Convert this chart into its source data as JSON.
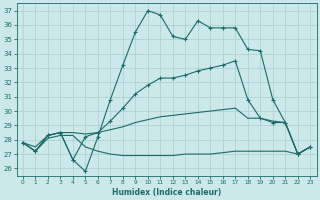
{
  "xlabel": "Humidex (Indice chaleur)",
  "ylabel": "",
  "xlim": [
    -0.5,
    23.5
  ],
  "ylim": [
    25.5,
    37.5
  ],
  "yticks": [
    26,
    27,
    28,
    29,
    30,
    31,
    32,
    33,
    34,
    35,
    36,
    37
  ],
  "xticks": [
    0,
    1,
    2,
    3,
    4,
    5,
    6,
    7,
    8,
    9,
    10,
    11,
    12,
    13,
    14,
    15,
    16,
    17,
    18,
    19,
    20,
    21,
    22,
    23
  ],
  "bg_color": "#cce8e8",
  "line_color": "#1a6b6b",
  "grid_color": "#aacece",
  "line1_marked": {
    "x": [
      0,
      1,
      2,
      3,
      4,
      5,
      6,
      7,
      8,
      9,
      10,
      11,
      12,
      13,
      14,
      15,
      16,
      17,
      18,
      19,
      20,
      21,
      22,
      23
    ],
    "y": [
      27.8,
      27.2,
      28.3,
      28.5,
      26.6,
      25.8,
      28.2,
      30.8,
      33.2,
      35.5,
      37.0,
      36.7,
      35.2,
      35.0,
      36.3,
      35.8,
      35.8,
      35.8,
      34.3,
      34.2,
      30.8,
      29.2,
      27.0,
      27.5
    ]
  },
  "line2_marked": {
    "x": [
      0,
      1,
      2,
      3,
      4,
      5,
      6,
      7,
      8,
      9,
      10,
      11,
      12,
      13,
      14,
      15,
      16,
      17,
      18,
      19,
      20,
      21,
      22,
      23
    ],
    "y": [
      27.8,
      27.2,
      28.3,
      28.5,
      26.6,
      28.2,
      28.5,
      29.3,
      30.2,
      31.2,
      31.8,
      32.3,
      32.3,
      32.5,
      32.8,
      33.0,
      33.2,
      33.5,
      30.8,
      29.5,
      29.2,
      29.2,
      27.0,
      27.5
    ]
  },
  "line3_plain": {
    "x": [
      0,
      1,
      2,
      3,
      4,
      5,
      6,
      7,
      8,
      9,
      10,
      11,
      12,
      13,
      14,
      15,
      16,
      17,
      18,
      19,
      20,
      21,
      22,
      23
    ],
    "y": [
      27.8,
      27.5,
      28.3,
      28.5,
      28.5,
      28.4,
      28.5,
      28.7,
      28.9,
      29.2,
      29.4,
      29.6,
      29.7,
      29.8,
      29.9,
      30.0,
      30.1,
      30.2,
      29.5,
      29.5,
      29.3,
      29.2,
      27.0,
      27.5
    ]
  },
  "line4_plain": {
    "x": [
      0,
      1,
      2,
      3,
      4,
      5,
      6,
      7,
      8,
      9,
      10,
      11,
      12,
      13,
      14,
      15,
      16,
      17,
      18,
      19,
      20,
      21,
      22,
      23
    ],
    "y": [
      27.8,
      27.2,
      28.1,
      28.3,
      28.3,
      27.5,
      27.2,
      27.0,
      26.9,
      26.9,
      26.9,
      26.9,
      26.9,
      27.0,
      27.0,
      27.0,
      27.1,
      27.2,
      27.2,
      27.2,
      27.2,
      27.2,
      27.0,
      27.5
    ]
  }
}
